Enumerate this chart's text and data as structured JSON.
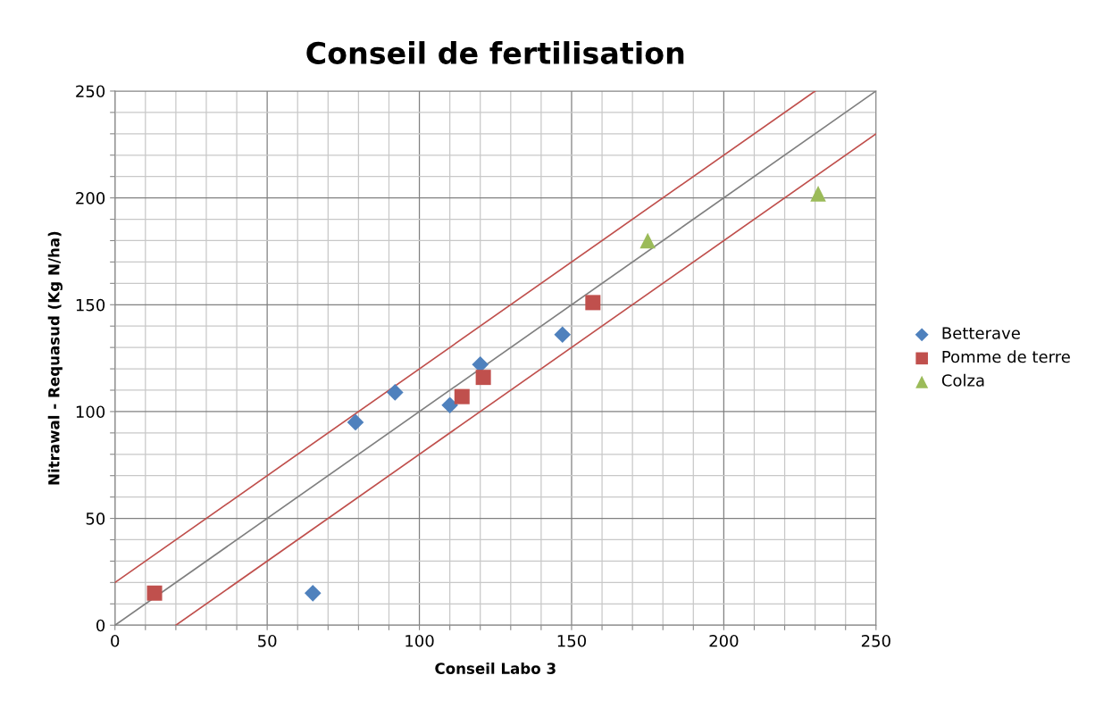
{
  "chart_data": {
    "type": "scatter",
    "title": "Conseil de fertilisation",
    "xlabel": "Conseil Labo 3",
    "ylabel": "Nitrawal - Requasud (Kg N/ha)",
    "series": [
      {
        "name": "Betterave",
        "color": "#4f81bd",
        "marker": "diamond",
        "x": [
          65,
          79,
          92,
          110,
          120,
          147
        ],
        "values": [
          15,
          95,
          109,
          103,
          122,
          136
        ]
      },
      {
        "name": "Pomme de terre",
        "color": "#c0504d",
        "marker": "square",
        "x": [
          13,
          114,
          121,
          157
        ],
        "values": [
          15,
          107,
          116,
          151
        ]
      },
      {
        "name": "Colza",
        "color": "#9bbb59",
        "marker": "triangle",
        "x": [
          175,
          231
        ],
        "values": [
          180,
          202
        ]
      },
      {
        "type": "line",
        "color": "#808080",
        "marker": "none",
        "line_style": "solid",
        "x": [
          0,
          250
        ],
        "values": [
          0,
          250
        ]
      },
      {
        "type": "line",
        "color": "#c0504d",
        "marker": "none",
        "line_style": "solid",
        "x": [
          0,
          230
        ],
        "values": [
          20,
          250
        ]
      },
      {
        "type": "line",
        "color": "#c0504d",
        "marker": "none",
        "line_style": "solid",
        "x": [
          20,
          250
        ],
        "values": [
          0,
          230
        ]
      }
    ],
    "xlim": [
      0,
      250
    ],
    "ylim": [
      0,
      250
    ],
    "xticks": [
      0,
      {
        "value": 10,
        "label": null
      },
      {
        "value": 20,
        "label": null
      },
      {
        "value": 30,
        "label": null
      },
      {
        "value": 40,
        "label": null
      },
      50,
      {
        "value": 60,
        "label": null
      },
      {
        "value": 70,
        "label": null
      },
      {
        "value": 80,
        "label": null
      },
      {
        "value": 90,
        "label": null
      },
      100,
      {
        "value": 110,
        "label": null
      },
      {
        "value": 120,
        "label": null
      },
      {
        "value": 130,
        "label": null
      },
      {
        "value": 140,
        "label": null
      },
      150,
      {
        "value": 160,
        "label": null
      },
      {
        "value": 170,
        "label": null
      },
      {
        "value": 180,
        "label": null
      },
      {
        "value": 190,
        "label": null
      },
      200,
      {
        "value": 210,
        "label": null
      },
      {
        "value": 220,
        "label": null
      },
      {
        "value": 230,
        "label": null
      },
      {
        "value": 240,
        "label": null
      },
      250
    ],
    "yticks": [
      0,
      {
        "value": 10,
        "label": null
      },
      {
        "value": 20,
        "label": null
      },
      {
        "value": 30,
        "label": null
      },
      {
        "value": 40,
        "label": null
      },
      50,
      {
        "value": 60,
        "label": null
      },
      {
        "value": 70,
        "label": null
      },
      {
        "value": 80,
        "label": null
      },
      {
        "value": 90,
        "label": null
      },
      100,
      {
        "value": 110,
        "label": null
      },
      {
        "value": 120,
        "label": null
      },
      {
        "value": 130,
        "label": null
      },
      {
        "value": 140,
        "label": null
      },
      150,
      {
        "value": 160,
        "label": null
      },
      {
        "value": 170,
        "label": null
      },
      {
        "value": 180,
        "label": null
      },
      {
        "value": 190,
        "label": null
      },
      200,
      {
        "value": 210,
        "label": null
      },
      {
        "value": 220,
        "label": null
      },
      {
        "value": 230,
        "label": null
      },
      {
        "value": 240,
        "label": null
      },
      250
    ],
    "grid": true,
    "legend": "right"
  }
}
